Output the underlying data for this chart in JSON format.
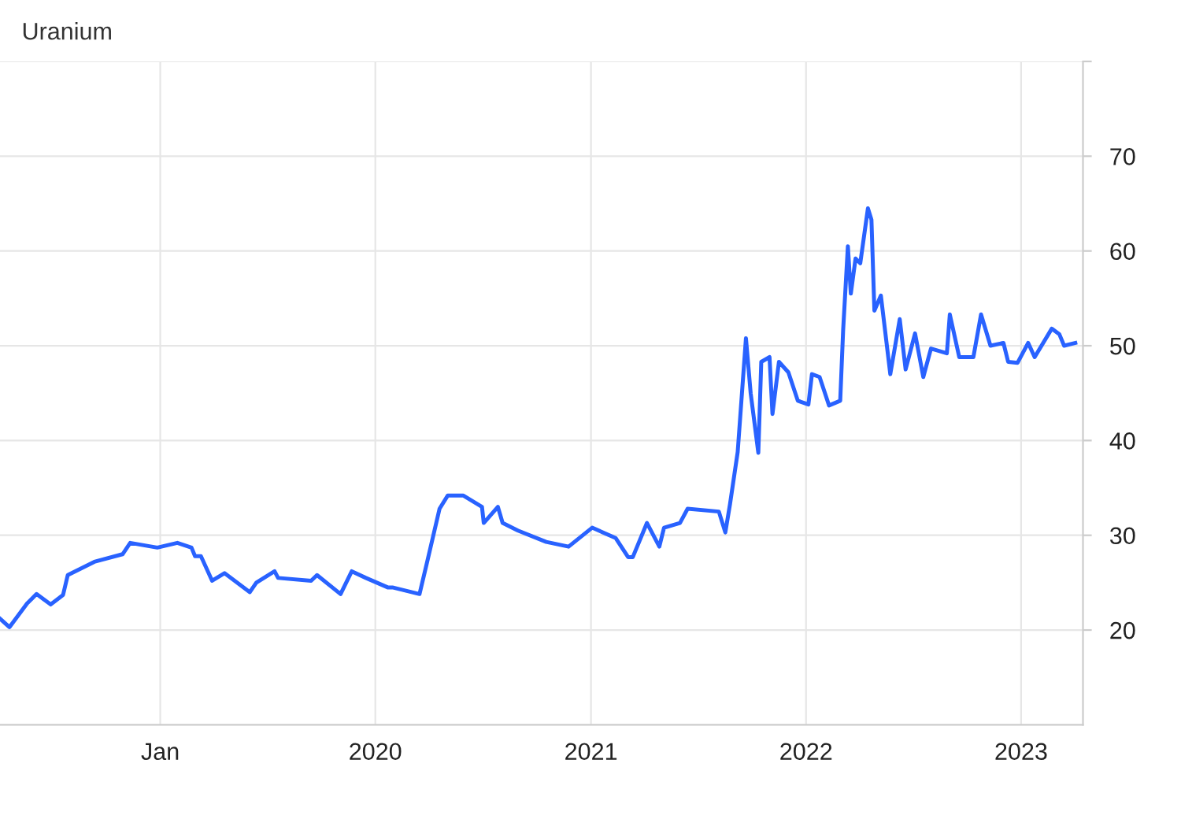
{
  "chart_data": {
    "type": "line",
    "title": "Uranium",
    "x": [
      "2018-04-04",
      "2018-04-20",
      "2018-05-20",
      "2018-06-05",
      "2018-06-29",
      "2018-07-20",
      "2018-07-28",
      "2018-09-11",
      "2018-10-29",
      "2018-11-11",
      "2018-12-27",
      "2019-01-30",
      "2019-02-23",
      "2019-03-01",
      "2019-03-11",
      "2019-03-30",
      "2019-04-20",
      "2019-06-02",
      "2019-06-13",
      "2019-07-14",
      "2019-07-20",
      "2019-09-14",
      "2019-09-24",
      "2019-11-03",
      "2019-11-22",
      "2019-12-16",
      "2020-01-22",
      "2020-01-30",
      "2020-03-16",
      "2020-03-29",
      "2020-04-19",
      "2020-05-03",
      "2020-05-29",
      "2020-06-30",
      "2020-07-03",
      "2020-07-27",
      "2020-08-04",
      "2020-08-30",
      "2020-10-17",
      "2020-11-24",
      "2021-01-03",
      "2021-02-12",
      "2021-03-05",
      "2021-03-13",
      "2021-04-06",
      "2021-04-27",
      "2021-05-05",
      "2021-06-01",
      "2021-06-14",
      "2021-08-06",
      "2021-08-17",
      "2021-08-25",
      "2021-09-07",
      "2021-09-21",
      "2021-09-29",
      "2021-10-12",
      "2021-10-17",
      "2021-10-31",
      "2021-11-05",
      "2021-11-16",
      "2021-12-02",
      "2021-12-18",
      "2022-01-05",
      "2022-01-11",
      "2022-01-24",
      "2022-02-09",
      "2022-02-28",
      "2022-03-05",
      "2022-03-13",
      "2022-03-18",
      "2022-03-26",
      "2022-04-03",
      "2022-04-16",
      "2022-04-22",
      "2022-04-27",
      "2022-05-08",
      "2022-05-24",
      "2022-06-09",
      "2022-06-19",
      "2022-07-05",
      "2022-07-19",
      "2022-08-01",
      "2022-08-28",
      "2022-09-02",
      "2022-09-18",
      "2022-10-12",
      "2022-10-25",
      "2022-11-10",
      "2022-12-02",
      "2022-12-10",
      "2022-12-26",
      "2023-01-13",
      "2023-01-24",
      "2023-02-22",
      "2023-03-07",
      "2023-03-15",
      "2023-04-03"
    ],
    "series": [
      {
        "color": "#2962ff",
        "values": [
          21.2,
          20.3,
          22.8,
          23.8,
          22.7,
          23.7,
          25.8,
          27.2,
          28.0,
          29.2,
          28.7,
          29.2,
          28.7,
          27.8,
          27.8,
          25.2,
          26.0,
          24.0,
          25.0,
          26.2,
          25.5,
          25.2,
          25.8,
          23.8,
          26.2,
          25.5,
          24.5,
          24.5,
          23.8,
          27.2,
          32.8,
          34.2,
          34.2,
          33.0,
          31.3,
          33.0,
          31.3,
          30.5,
          29.3,
          28.8,
          30.8,
          29.7,
          27.7,
          27.7,
          31.3,
          28.8,
          30.8,
          31.3,
          32.8,
          32.5,
          30.3,
          33.3,
          38.8,
          50.8,
          45.0,
          38.7,
          48.3,
          48.8,
          42.8,
          48.3,
          47.2,
          44.2,
          43.8,
          47.0,
          46.7,
          43.7,
          44.2,
          51.7,
          60.5,
          55.5,
          59.2,
          58.7,
          64.5,
          63.3,
          53.7,
          55.3,
          47.0,
          52.8,
          47.5,
          51.3,
          46.7,
          49.7,
          49.2,
          53.3,
          48.8,
          48.8,
          53.3,
          50.0,
          50.3,
          48.3,
          48.2,
          50.3,
          48.8,
          51.8,
          51.2,
          50.0,
          50.3
        ]
      }
    ],
    "xlim": [
      "2018-04-04",
      "2023-04-16"
    ],
    "xticks": [
      {
        "value": "2019-01-01",
        "label": "Jan"
      },
      {
        "value": "2020-01-01",
        "label": "2020"
      },
      {
        "value": "2021-01-01",
        "label": "2021"
      },
      {
        "value": "2022-01-01",
        "label": "2022"
      },
      {
        "value": "2023-01-01",
        "label": "2023"
      }
    ],
    "ylim": [
      10,
      80
    ],
    "yticks": [
      20,
      30,
      40,
      50,
      60,
      70,
      {
        "value": 80,
        "label": null
      }
    ],
    "grid": true,
    "line_style": "solid",
    "marker": "none"
  }
}
